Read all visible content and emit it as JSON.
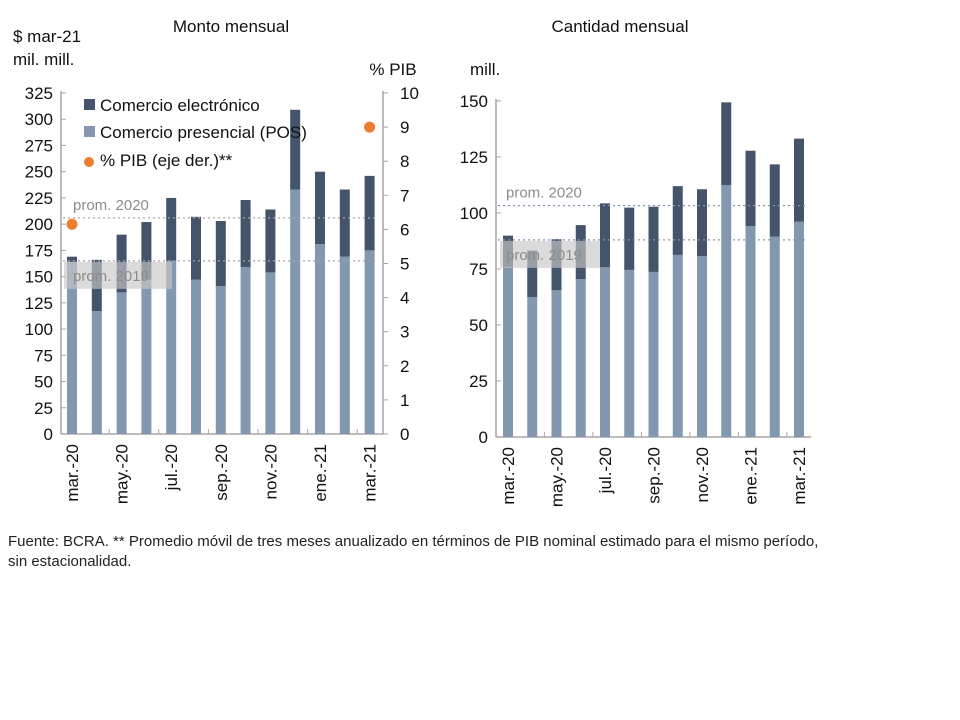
{
  "chart_data": [
    {
      "type": "bar",
      "stacked": true,
      "title": "Monto mensual",
      "ylabel": "$ mar-21 mil. mill.",
      "y2label": "% PIB",
      "ylim": [
        0,
        325
      ],
      "y2lim": [
        0,
        10
      ],
      "yticks": [
        0,
        25,
        50,
        75,
        100,
        125,
        150,
        175,
        200,
        225,
        250,
        275,
        300,
        325
      ],
      "y2ticks": [
        0,
        1,
        2,
        3,
        4,
        5,
        6,
        7,
        8,
        9,
        10
      ],
      "categories": [
        "mar.-20",
        "abr.-20",
        "may.-20",
        "jun.-20",
        "jul.-20",
        "ago.-20",
        "sep.-20",
        "oct.-20",
        "nov.-20",
        "dic.-20",
        "ene.-21",
        "feb.-21",
        "mar.-21"
      ],
      "xtick_labels": [
        "mar.-20",
        "may.-20",
        "jul.-20",
        "sep.-20",
        "nov.-20",
        "ene.-21",
        "mar.-21"
      ],
      "series": [
        {
          "name": "Comercio presencial (POS)",
          "color": "#8497b0",
          "values": [
            164,
            117,
            135,
            147,
            165,
            147,
            141,
            159,
            154,
            233,
            181,
            169,
            175
          ]
        },
        {
          "name": "Comercio electrónico",
          "color": "#44546a",
          "values": [
            5,
            49,
            55,
            55,
            60,
            60,
            62,
            64,
            60,
            76,
            69,
            64,
            71
          ]
        }
      ],
      "points": {
        "name": "% PIB (eje der.)**",
        "color": "#ed7d31",
        "axis": "right",
        "values": [
          6.15,
          null,
          null,
          null,
          null,
          null,
          null,
          null,
          null,
          null,
          null,
          null,
          9.0
        ]
      },
      "reference_lines": [
        {
          "label": "prom. 2020",
          "value": 206
        },
        {
          "label": "prom. 2019",
          "value": 165
        }
      ],
      "legend": {
        "position": "top-left"
      },
      "grid": false
    },
    {
      "type": "bar",
      "stacked": true,
      "title": "Cantidad mensual",
      "ylabel": "mill.",
      "ylim": [
        0,
        150
      ],
      "yticks": [
        0,
        25,
        50,
        75,
        100,
        125,
        150
      ],
      "categories": [
        "mar.-20",
        "abr.-20",
        "may.-20",
        "jun.-20",
        "jul.-20",
        "ago.-20",
        "sep.-20",
        "oct.-20",
        "nov.-20",
        "dic.-20",
        "ene.-21",
        "feb.-21",
        "mar.-21"
      ],
      "xtick_labels": [
        "mar.-20",
        "may.-20",
        "jul.-20",
        "sep.-20",
        "nov.-20",
        "ene.-21",
        "mar.-21"
      ],
      "series": [
        {
          "name": "Comercio presencial (POS)",
          "color": "#8497b0",
          "values": [
            76,
            62.4,
            65.5,
            70.5,
            75.8,
            74.6,
            73.7,
            81.3,
            80.8,
            112.5,
            94.2,
            89.4,
            96.1
          ]
        },
        {
          "name": "Comercio electrónico",
          "color": "#44546a",
          "values": [
            13.9,
            20.8,
            22.8,
            24.1,
            28.5,
            27.8,
            29.1,
            30.7,
            29.8,
            36.9,
            33.6,
            32.3,
            37.1
          ]
        }
      ],
      "reference_lines": [
        {
          "label": "prom. 2020",
          "value": 103.3
        },
        {
          "label": "prom. 2019",
          "value": 88
        }
      ],
      "grid": false
    }
  ],
  "footer": "Fuente: BCRA. ** Promedio móvil de tres meses anualizado en términos de PIB nominal estimado para el mismo período, sin estacionalidad."
}
